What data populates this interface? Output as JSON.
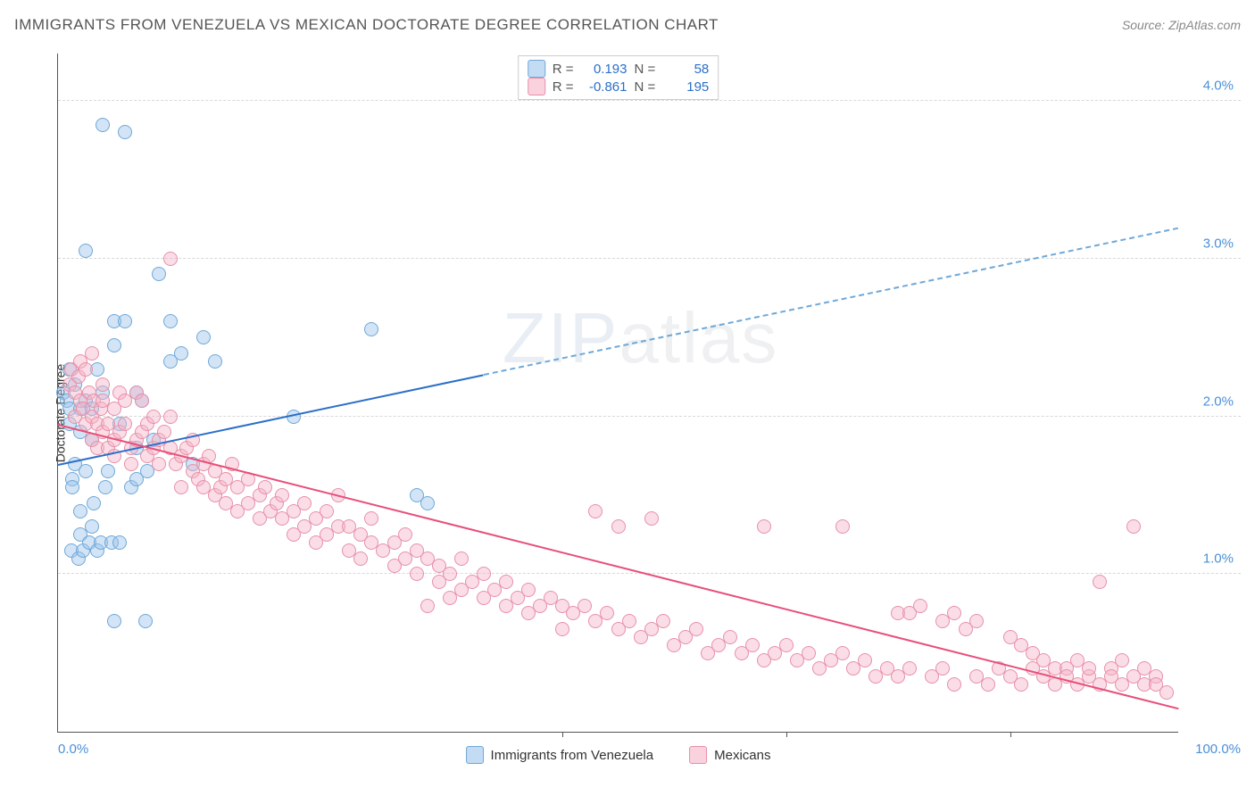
{
  "header": {
    "title": "IMMIGRANTS FROM VENEZUELA VS MEXICAN DOCTORATE DEGREE CORRELATION CHART",
    "source_prefix": "Source: ",
    "source_name": "ZipAtlas.com"
  },
  "watermark": {
    "left": "ZIP",
    "right": "atlas"
  },
  "chart": {
    "type": "scatter",
    "y_axis_label": "Doctorate Degree",
    "xlim": [
      0,
      100
    ],
    "ylim": [
      0,
      4.3
    ],
    "y_ticks": [
      1.0,
      2.0,
      3.0,
      4.0
    ],
    "y_tick_labels": [
      "1.0%",
      "2.0%",
      "3.0%",
      "4.0%"
    ],
    "x_tick_left": "0.0%",
    "x_tick_right": "100.0%",
    "x_gridlines": [
      45,
      65,
      85
    ],
    "background_color": "#ffffff",
    "grid_color": "#d8d8d8",
    "axis_color": "#555555",
    "tick_label_color": "#4a90d9",
    "point_radius": 8,
    "colors": {
      "blue_fill": "rgba(155,195,235,0.45)",
      "blue_stroke": "#6fa8d8",
      "blue_line": "#2c6fc9",
      "pink_fill": "rgba(245,180,200,0.45)",
      "pink_stroke": "#e890a8",
      "pink_line": "#e84f7a"
    },
    "series": [
      {
        "key": "venezuela",
        "label": "Immigrants from Venezuela",
        "color_key": "blue",
        "R": "0.193",
        "N": "58",
        "trend": {
          "x1": 0,
          "y1": 1.7,
          "x2": 100,
          "y2": 3.2,
          "solid_until_x": 38
        },
        "points": [
          [
            0.5,
            2.15
          ],
          [
            0.8,
            2.1
          ],
          [
            1,
            2.05
          ],
          [
            1,
            1.95
          ],
          [
            1,
            2.3
          ],
          [
            1.2,
            1.15
          ],
          [
            1.3,
            1.6
          ],
          [
            1.3,
            1.55
          ],
          [
            1.5,
            1.7
          ],
          [
            1.5,
            2.2
          ],
          [
            1.8,
            1.1
          ],
          [
            2,
            1.4
          ],
          [
            2,
            2.05
          ],
          [
            2,
            1.9
          ],
          [
            2,
            1.25
          ],
          [
            2.2,
            1.15
          ],
          [
            2.5,
            1.65
          ],
          [
            2.5,
            2.1
          ],
          [
            2.5,
            3.05
          ],
          [
            2.8,
            1.2
          ],
          [
            3,
            1.3
          ],
          [
            3,
            1.85
          ],
          [
            3,
            2.05
          ],
          [
            3.2,
            1.45
          ],
          [
            3.5,
            1.15
          ],
          [
            3.5,
            2.3
          ],
          [
            3.8,
            1.2
          ],
          [
            4,
            3.85
          ],
          [
            4,
            2.15
          ],
          [
            4.2,
            1.55
          ],
          [
            4.5,
            1.65
          ],
          [
            4.8,
            1.2
          ],
          [
            5,
            2.45
          ],
          [
            5,
            0.7
          ],
          [
            5,
            2.6
          ],
          [
            5.5,
            1.95
          ],
          [
            5.5,
            1.2
          ],
          [
            6,
            2.6
          ],
          [
            6,
            3.8
          ],
          [
            6.5,
            1.55
          ],
          [
            7,
            1.6
          ],
          [
            7,
            2.15
          ],
          [
            7,
            1.8
          ],
          [
            7.5,
            2.1
          ],
          [
            7.8,
            0.7
          ],
          [
            8,
            1.65
          ],
          [
            8.5,
            1.85
          ],
          [
            9,
            2.9
          ],
          [
            10,
            2.6
          ],
          [
            10,
            2.35
          ],
          [
            11,
            2.4
          ],
          [
            12,
            1.7
          ],
          [
            13,
            2.5
          ],
          [
            14,
            2.35
          ],
          [
            21,
            2.0
          ],
          [
            28,
            2.55
          ],
          [
            32,
            1.5
          ],
          [
            33,
            1.45
          ]
        ]
      },
      {
        "key": "mexicans",
        "label": "Mexicans",
        "color_key": "pink",
        "R": "-0.861",
        "N": "195",
        "trend": {
          "x1": 0,
          "y1": 1.95,
          "x2": 100,
          "y2": 0.15,
          "solid_until_x": 100
        },
        "points": [
          [
            1,
            2.2
          ],
          [
            1.2,
            2.3
          ],
          [
            1.5,
            2.15
          ],
          [
            1.5,
            2.0
          ],
          [
            1.8,
            2.25
          ],
          [
            2,
            2.1
          ],
          [
            2,
            2.35
          ],
          [
            2.2,
            2.05
          ],
          [
            2.5,
            2.3
          ],
          [
            2.5,
            1.95
          ],
          [
            2.8,
            2.15
          ],
          [
            3,
            1.85
          ],
          [
            3,
            2.0
          ],
          [
            3,
            2.4
          ],
          [
            3.2,
            2.1
          ],
          [
            3.5,
            1.95
          ],
          [
            3.5,
            1.8
          ],
          [
            3.8,
            2.05
          ],
          [
            4,
            2.1
          ],
          [
            4,
            1.9
          ],
          [
            4,
            2.2
          ],
          [
            4.5,
            1.8
          ],
          [
            4.5,
            1.95
          ],
          [
            5,
            2.05
          ],
          [
            5,
            1.85
          ],
          [
            5,
            1.75
          ],
          [
            5.5,
            2.15
          ],
          [
            5.5,
            1.9
          ],
          [
            6,
            1.95
          ],
          [
            6,
            2.1
          ],
          [
            6.5,
            1.8
          ],
          [
            6.5,
            1.7
          ],
          [
            7,
            1.85
          ],
          [
            7,
            2.15
          ],
          [
            7.5,
            2.1
          ],
          [
            7.5,
            1.9
          ],
          [
            8,
            1.75
          ],
          [
            8,
            1.95
          ],
          [
            8.5,
            1.8
          ],
          [
            8.5,
            2.0
          ],
          [
            9,
            1.7
          ],
          [
            9,
            1.85
          ],
          [
            9.5,
            1.9
          ],
          [
            10,
            1.8
          ],
          [
            10,
            2.0
          ],
          [
            10,
            3.0
          ],
          [
            10.5,
            1.7
          ],
          [
            11,
            1.75
          ],
          [
            11,
            1.55
          ],
          [
            11.5,
            1.8
          ],
          [
            12,
            1.65
          ],
          [
            12,
            1.85
          ],
          [
            12.5,
            1.6
          ],
          [
            13,
            1.7
          ],
          [
            13,
            1.55
          ],
          [
            13.5,
            1.75
          ],
          [
            14,
            1.5
          ],
          [
            14,
            1.65
          ],
          [
            14.5,
            1.55
          ],
          [
            15,
            1.6
          ],
          [
            15,
            1.45
          ],
          [
            15.5,
            1.7
          ],
          [
            16,
            1.55
          ],
          [
            16,
            1.4
          ],
          [
            17,
            1.6
          ],
          [
            17,
            1.45
          ],
          [
            18,
            1.5
          ],
          [
            18,
            1.35
          ],
          [
            18.5,
            1.55
          ],
          [
            19,
            1.4
          ],
          [
            19.5,
            1.45
          ],
          [
            20,
            1.35
          ],
          [
            20,
            1.5
          ],
          [
            21,
            1.25
          ],
          [
            21,
            1.4
          ],
          [
            22,
            1.45
          ],
          [
            22,
            1.3
          ],
          [
            23,
            1.35
          ],
          [
            23,
            1.2
          ],
          [
            24,
            1.4
          ],
          [
            24,
            1.25
          ],
          [
            25,
            1.3
          ],
          [
            25,
            1.5
          ],
          [
            26,
            1.15
          ],
          [
            26,
            1.3
          ],
          [
            27,
            1.25
          ],
          [
            27,
            1.1
          ],
          [
            28,
            1.2
          ],
          [
            28,
            1.35
          ],
          [
            29,
            1.15
          ],
          [
            30,
            1.2
          ],
          [
            30,
            1.05
          ],
          [
            31,
            1.25
          ],
          [
            31,
            1.1
          ],
          [
            32,
            1.0
          ],
          [
            32,
            1.15
          ],
          [
            33,
            0.8
          ],
          [
            33,
            1.1
          ],
          [
            34,
            1.05
          ],
          [
            34,
            0.95
          ],
          [
            35,
            1.0
          ],
          [
            35,
            0.85
          ],
          [
            36,
            1.1
          ],
          [
            36,
            0.9
          ],
          [
            37,
            0.95
          ],
          [
            38,
            0.85
          ],
          [
            38,
            1.0
          ],
          [
            39,
            0.9
          ],
          [
            40,
            0.95
          ],
          [
            40,
            0.8
          ],
          [
            41,
            0.85
          ],
          [
            42,
            0.9
          ],
          [
            42,
            0.75
          ],
          [
            43,
            0.8
          ],
          [
            44,
            0.85
          ],
          [
            45,
            0.8
          ],
          [
            45,
            0.65
          ],
          [
            46,
            0.75
          ],
          [
            47,
            0.8
          ],
          [
            48,
            0.7
          ],
          [
            48,
            1.4
          ],
          [
            49,
            0.75
          ],
          [
            50,
            1.3
          ],
          [
            50,
            0.65
          ],
          [
            51,
            0.7
          ],
          [
            52,
            0.6
          ],
          [
            53,
            1.35
          ],
          [
            53,
            0.65
          ],
          [
            54,
            0.7
          ],
          [
            55,
            0.55
          ],
          [
            56,
            0.6
          ],
          [
            57,
            0.65
          ],
          [
            58,
            0.5
          ],
          [
            59,
            0.55
          ],
          [
            60,
            0.6
          ],
          [
            61,
            0.5
          ],
          [
            62,
            0.55
          ],
          [
            63,
            0.45
          ],
          [
            63,
            1.3
          ],
          [
            64,
            0.5
          ],
          [
            65,
            0.55
          ],
          [
            66,
            0.45
          ],
          [
            67,
            0.5
          ],
          [
            68,
            0.4
          ],
          [
            69,
            0.45
          ],
          [
            70,
            0.5
          ],
          [
            70,
            1.3
          ],
          [
            71,
            0.4
          ],
          [
            72,
            0.45
          ],
          [
            73,
            0.35
          ],
          [
            74,
            0.4
          ],
          [
            75,
            0.75
          ],
          [
            75,
            0.35
          ],
          [
            76,
            0.75
          ],
          [
            76,
            0.4
          ],
          [
            77,
            0.8
          ],
          [
            78,
            0.35
          ],
          [
            79,
            0.7
          ],
          [
            79,
            0.4
          ],
          [
            80,
            0.75
          ],
          [
            80,
            0.3
          ],
          [
            81,
            0.65
          ],
          [
            82,
            0.35
          ],
          [
            82,
            0.7
          ],
          [
            83,
            0.3
          ],
          [
            84,
            0.4
          ],
          [
            85,
            0.35
          ],
          [
            85,
            0.6
          ],
          [
            86,
            0.3
          ],
          [
            86,
            0.55
          ],
          [
            87,
            0.4
          ],
          [
            87,
            0.5
          ],
          [
            88,
            0.35
          ],
          [
            88,
            0.45
          ],
          [
            89,
            0.3
          ],
          [
            89,
            0.4
          ],
          [
            90,
            0.4
          ],
          [
            90,
            0.35
          ],
          [
            91,
            0.3
          ],
          [
            91,
            0.45
          ],
          [
            92,
            0.35
          ],
          [
            92,
            0.4
          ],
          [
            93,
            0.95
          ],
          [
            93,
            0.3
          ],
          [
            94,
            0.4
          ],
          [
            94,
            0.35
          ],
          [
            95,
            0.3
          ],
          [
            95,
            0.45
          ],
          [
            96,
            0.35
          ],
          [
            96,
            1.3
          ],
          [
            97,
            0.3
          ],
          [
            97,
            0.4
          ],
          [
            98,
            0.35
          ],
          [
            98,
            0.3
          ],
          [
            99,
            0.25
          ]
        ]
      }
    ],
    "legend_bottom": [
      {
        "color": "blue",
        "label": "Immigrants from Venezuela"
      },
      {
        "color": "pink",
        "label": "Mexicans"
      }
    ],
    "correl_box": {
      "R_label": "R =",
      "N_label": "N ="
    }
  }
}
